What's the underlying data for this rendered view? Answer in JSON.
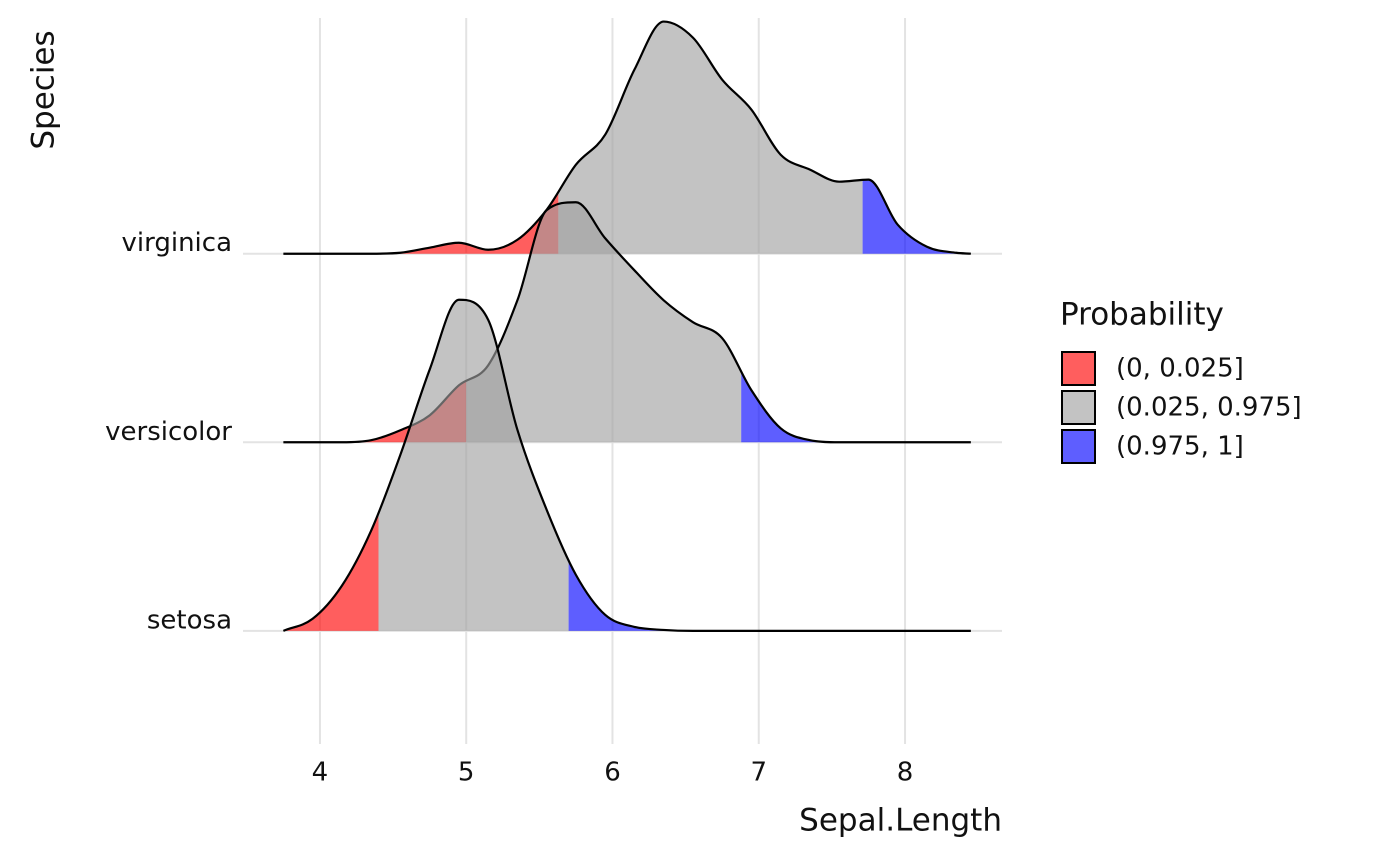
{
  "chart_data": {
    "type": "ridgeline",
    "x_label": "Sepal.Length",
    "y_label": "Species",
    "xlim": [
      3.474,
      8.663
    ],
    "xticks": [
      4,
      5,
      6,
      7,
      8
    ],
    "ylim": [
      -0.6,
      3.25
    ],
    "grid": true,
    "x": [
      3.75,
      3.95,
      4.15,
      4.35,
      4.55,
      4.75,
      4.95,
      5.15,
      5.35,
      5.55,
      5.75,
      5.95,
      6.15,
      6.35,
      6.55,
      6.75,
      6.95,
      7.15,
      7.35,
      7.55,
      7.75,
      7.95,
      8.15,
      8.35,
      8.45
    ],
    "series": [
      {
        "name": "setosa",
        "quantiles": [
          4.4,
          5.7
        ],
        "values": [
          0,
          0.064,
          0.239,
          0.531,
          0.934,
          1.385,
          1.756,
          1.65,
          1.066,
          0.642,
          0.297,
          0.085,
          0.021,
          0.005,
          0,
          0,
          0,
          0,
          0,
          0,
          0,
          0,
          0,
          0,
          0
        ]
      },
      {
        "name": "versicolor",
        "quantiles": [
          5.0,
          6.88
        ],
        "values": [
          0,
          0,
          0,
          0.011,
          0.064,
          0.143,
          0.302,
          0.408,
          0.753,
          1.231,
          1.273,
          1.082,
          0.912,
          0.753,
          0.637,
          0.552,
          0.276,
          0.074,
          0.011,
          0,
          0,
          0,
          0,
          0,
          0
        ]
      },
      {
        "name": "virginica",
        "quantiles": [
          5.63,
          7.71
        ],
        "values": [
          0,
          0,
          0,
          0,
          0.005,
          0.032,
          0.058,
          0.021,
          0.074,
          0.233,
          0.472,
          0.631,
          0.976,
          1.231,
          1.146,
          0.923,
          0.764,
          0.525,
          0.446,
          0.382,
          0.393,
          0.154,
          0.037,
          0.005,
          0
        ]
      }
    ],
    "legend": {
      "title": "Probability",
      "alpha": 0.63,
      "items": [
        {
          "name": "(0, 0.025]",
          "color": "#ff0000"
        },
        {
          "name": "(0.025, 0.975]",
          "color": "#a0a0a0"
        },
        {
          "name": "(0.975, 1]",
          "color": "#0000ff"
        }
      ]
    }
  }
}
